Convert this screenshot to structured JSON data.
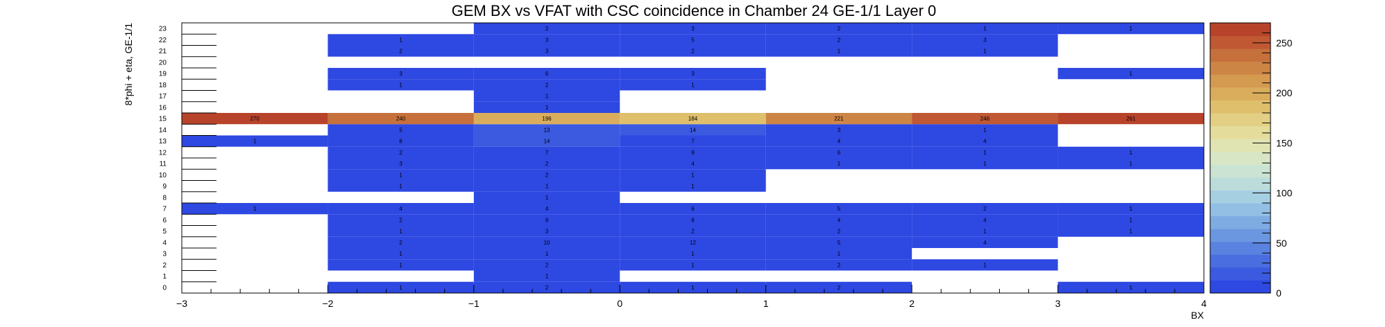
{
  "chart_data": {
    "type": "heatmap",
    "title": "GEM BX vs VFAT with CSC coincidence in Chamber 24 GE-1/1 Layer 0",
    "xlabel": "BX",
    "ylabel": "8*phi + eta, GE-1/1",
    "xlim": [
      -3,
      4
    ],
    "ylim": [
      0,
      24
    ],
    "x_bin_edges": [
      -3,
      -2,
      -1,
      0,
      1,
      2,
      3,
      4
    ],
    "x_ticks": [
      -3,
      -2,
      -1,
      0,
      1,
      2,
      3,
      4
    ],
    "x_tick_labels": [
      "−3",
      "−2",
      "−1",
      "0",
      "1",
      "2",
      "3",
      "4"
    ],
    "y_bins": [
      0,
      1,
      2,
      3,
      4,
      5,
      6,
      7,
      8,
      9,
      10,
      11,
      12,
      13,
      14,
      15,
      16,
      17,
      18,
      19,
      20,
      21,
      22,
      23
    ],
    "z_range": [
      0,
      270
    ],
    "colorbar_ticks": [
      0,
      50,
      100,
      150,
      200,
      250
    ],
    "colorbar_colors": [
      "#2e48e2",
      "#3b5ae0",
      "#4a6ddf",
      "#5a82e0",
      "#6b97e1",
      "#7fabe3",
      "#93bfe4",
      "#a7cfe2",
      "#bcdcdc",
      "#cbe3d2",
      "#d8e6c5",
      "#e0e4b2",
      "#e3dc9b",
      "#e2cf83",
      "#dfbf6c",
      "#daad5c",
      "#d49a50",
      "#cd8546",
      "#c6703c",
      "#bf5833",
      "#b8432b"
    ],
    "cells": [
      {
        "y": 0,
        "values": [
          null,
          1,
          2,
          1,
          2,
          null,
          1
        ]
      },
      {
        "y": 1,
        "values": [
          null,
          null,
          1,
          null,
          null,
          null,
          null
        ]
      },
      {
        "y": 2,
        "values": [
          null,
          1,
          2,
          1,
          2,
          1,
          null
        ]
      },
      {
        "y": 3,
        "values": [
          null,
          1,
          1,
          1,
          1,
          null,
          null
        ]
      },
      {
        "y": 4,
        "values": [
          null,
          2,
          10,
          12,
          5,
          4,
          null
        ]
      },
      {
        "y": 5,
        "values": [
          null,
          1,
          3,
          2,
          2,
          1,
          1
        ]
      },
      {
        "y": 6,
        "values": [
          null,
          2,
          9,
          8,
          4,
          4,
          1
        ]
      },
      {
        "y": 7,
        "values": [
          1,
          4,
          4,
          6,
          5,
          2,
          1
        ]
      },
      {
        "y": 8,
        "values": [
          null,
          null,
          1,
          null,
          null,
          null,
          null
        ]
      },
      {
        "y": 9,
        "values": [
          null,
          1,
          1,
          1,
          null,
          null,
          null
        ]
      },
      {
        "y": 10,
        "values": [
          null,
          1,
          2,
          1,
          null,
          null,
          null
        ]
      },
      {
        "y": 11,
        "values": [
          null,
          3,
          2,
          4,
          1,
          1,
          1
        ]
      },
      {
        "y": 12,
        "values": [
          null,
          2,
          7,
          9,
          6,
          1,
          1
        ]
      },
      {
        "y": 13,
        "values": [
          1,
          8,
          14,
          7,
          4,
          4,
          null
        ]
      },
      {
        "y": 14,
        "values": [
          null,
          5,
          13,
          14,
          3,
          1,
          null
        ]
      },
      {
        "y": 15,
        "values": [
          270,
          240,
          196,
          184,
          221,
          246,
          261
        ]
      },
      {
        "y": 16,
        "values": [
          null,
          null,
          1,
          null,
          null,
          null,
          null
        ]
      },
      {
        "y": 17,
        "values": [
          null,
          null,
          1,
          null,
          null,
          null,
          null
        ]
      },
      {
        "y": 18,
        "values": [
          null,
          1,
          2,
          1,
          null,
          null,
          null
        ]
      },
      {
        "y": 19,
        "values": [
          null,
          3,
          6,
          3,
          null,
          null,
          1
        ]
      },
      {
        "y": 20,
        "values": [
          null,
          null,
          null,
          null,
          null,
          null,
          null
        ]
      },
      {
        "y": 21,
        "values": [
          null,
          2,
          3,
          2,
          1,
          1,
          null
        ]
      },
      {
        "y": 22,
        "values": [
          null,
          1,
          3,
          5,
          2,
          3,
          null
        ]
      },
      {
        "y": 23,
        "values": [
          null,
          null,
          2,
          3,
          2,
          1,
          1
        ]
      }
    ]
  }
}
